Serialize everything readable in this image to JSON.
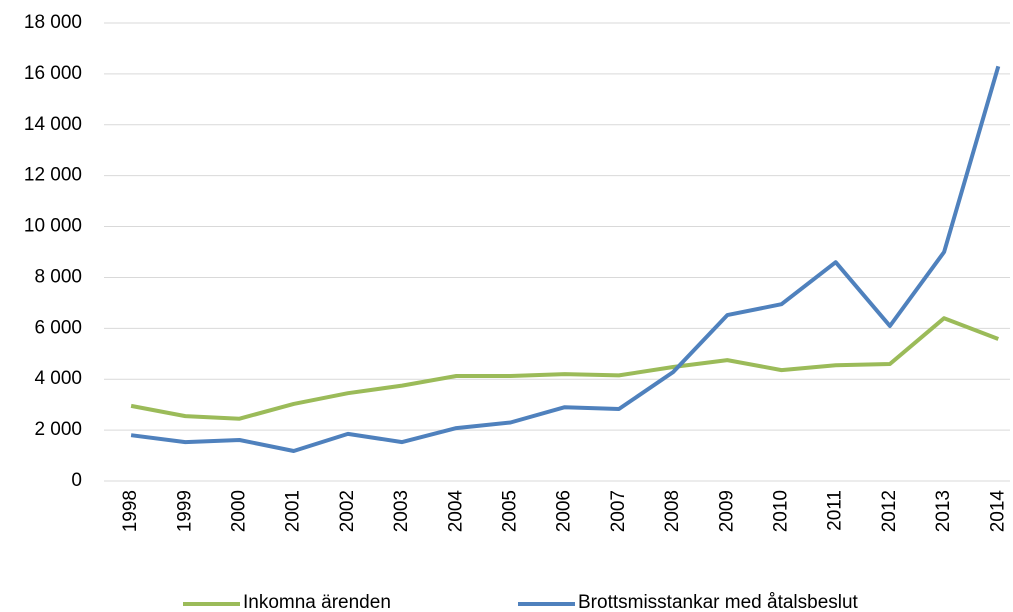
{
  "chart_data": {
    "type": "line",
    "categories": [
      "1998",
      "1999",
      "2000",
      "2001",
      "2002",
      "2003",
      "2004",
      "2005",
      "2006",
      "2007",
      "2008",
      "2009",
      "2010",
      "2011",
      "2012",
      "2013",
      "2014"
    ],
    "series": [
      {
        "name": "Inkomna ärenden",
        "color": "#9bbb59",
        "values": [
          2950,
          2550,
          2450,
          3030,
          3450,
          3750,
          4125,
          4125,
          4200,
          4150,
          4480,
          4750,
          4360,
          4550,
          4600,
          6400,
          5580
        ]
      },
      {
        "name": "Brottsmisstankar med åtalsbeslut",
        "color": "#4f81bd",
        "values": [
          1800,
          1530,
          1610,
          1180,
          1850,
          1530,
          2080,
          2300,
          2900,
          2830,
          4280,
          6520,
          6950,
          8600,
          6090,
          9000,
          16300
        ]
      }
    ],
    "ylim": [
      0,
      18000
    ],
    "yticks": [
      0,
      {
        "value": 2000,
        "label": "2 000"
      },
      {
        "value": 4000,
        "label": "4 000"
      },
      {
        "value": 6000,
        "label": "6 000"
      },
      {
        "value": 8000,
        "label": "8 000"
      },
      {
        "value": 10000,
        "label": "10 000"
      },
      {
        "value": 12000,
        "label": "12 000"
      },
      {
        "value": 14000,
        "label": "14 000"
      },
      {
        "value": 16000,
        "label": "16 000"
      },
      {
        "value": 18000,
        "label": "18 000"
      }
    ],
    "grid": true
  }
}
